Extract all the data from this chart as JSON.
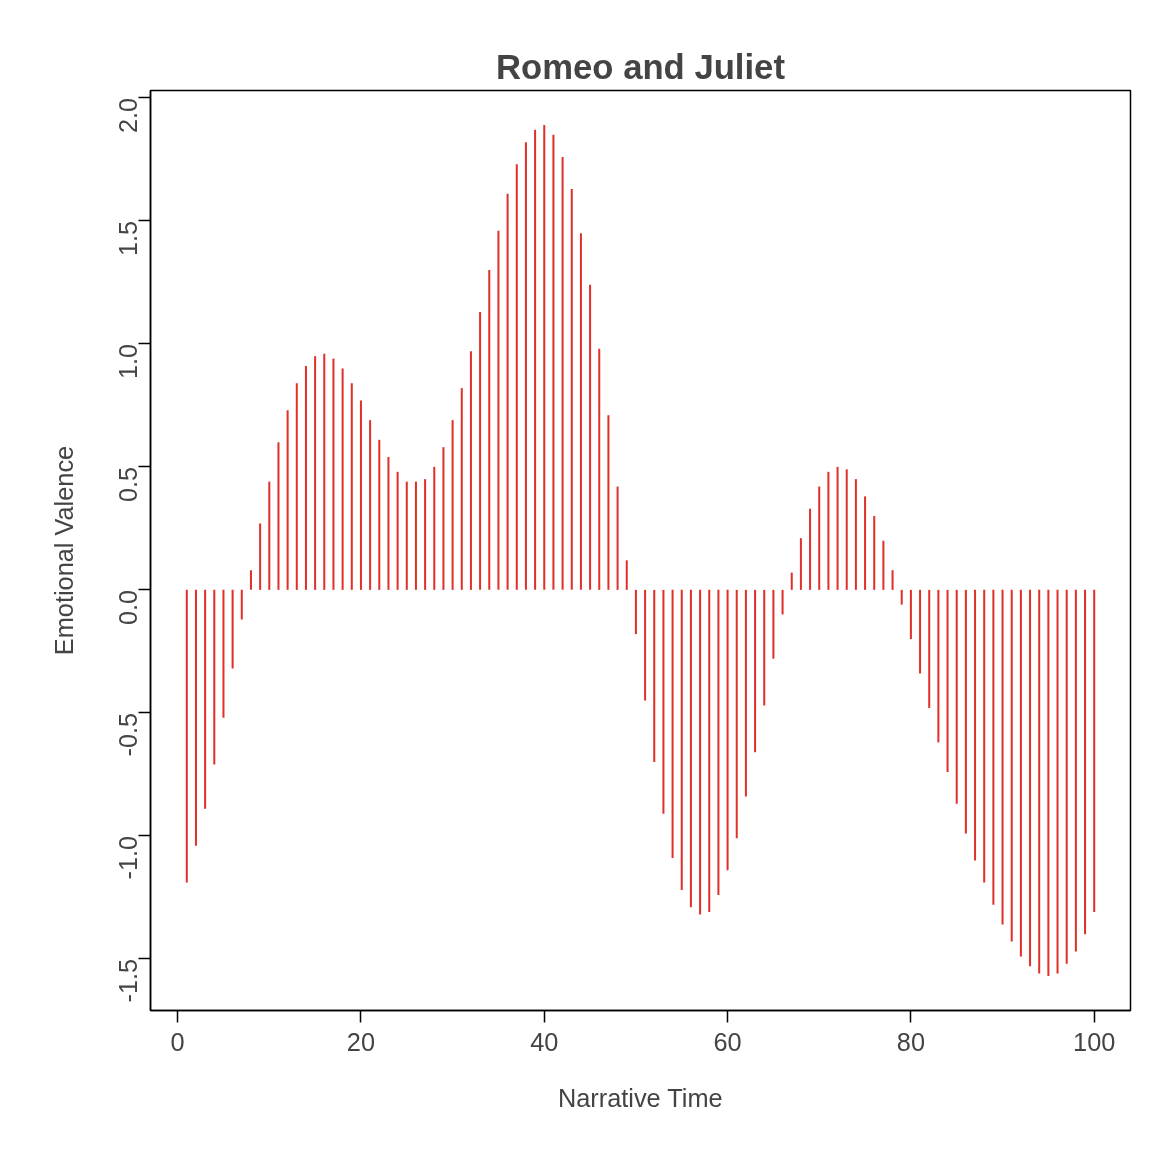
{
  "chart_data": {
    "type": "bar",
    "title": "Romeo and Juliet",
    "xlabel": "Narrative Time",
    "ylabel": "Emotional Valence",
    "color": "#e0302a",
    "x": [
      1,
      2,
      3,
      4,
      5,
      6,
      7,
      8,
      9,
      10,
      11,
      12,
      13,
      14,
      15,
      16,
      17,
      18,
      19,
      20,
      21,
      22,
      23,
      24,
      25,
      26,
      27,
      28,
      29,
      30,
      31,
      32,
      33,
      34,
      35,
      36,
      37,
      38,
      39,
      40,
      41,
      42,
      43,
      44,
      45,
      46,
      47,
      48,
      49,
      50,
      51,
      52,
      53,
      54,
      55,
      56,
      57,
      58,
      59,
      60,
      61,
      62,
      63,
      64,
      65,
      66,
      67,
      68,
      69,
      70,
      71,
      72,
      73,
      74,
      75,
      76,
      77,
      78,
      79,
      80,
      81,
      82,
      83,
      84,
      85,
      86,
      87,
      88,
      89,
      90,
      91,
      92,
      93,
      94,
      95,
      96,
      97,
      98,
      99,
      100
    ],
    "values": [
      -1.19,
      -1.04,
      -0.89,
      -0.71,
      -0.52,
      -0.32,
      -0.12,
      0.08,
      0.27,
      0.44,
      0.6,
      0.73,
      0.84,
      0.91,
      0.95,
      0.96,
      0.94,
      0.9,
      0.84,
      0.77,
      0.69,
      0.61,
      0.54,
      0.48,
      0.44,
      0.44,
      0.45,
      0.5,
      0.58,
      0.69,
      0.82,
      0.97,
      1.13,
      1.3,
      1.46,
      1.61,
      1.73,
      1.82,
      1.87,
      1.89,
      1.85,
      1.76,
      1.63,
      1.45,
      1.24,
      0.98,
      0.71,
      0.42,
      0.12,
      -0.18,
      -0.45,
      -0.7,
      -0.91,
      -1.09,
      -1.22,
      -1.29,
      -1.32,
      -1.31,
      -1.24,
      -1.14,
      -1.01,
      -0.84,
      -0.66,
      -0.47,
      -0.28,
      -0.1,
      0.07,
      0.21,
      0.33,
      0.42,
      0.48,
      0.5,
      0.49,
      0.45,
      0.38,
      0.3,
      0.2,
      0.08,
      -0.06,
      -0.2,
      -0.34,
      -0.48,
      -0.62,
      -0.74,
      -0.87,
      -0.99,
      -1.1,
      -1.19,
      -1.28,
      -1.36,
      -1.43,
      -1.49,
      -1.53,
      -1.56,
      -1.57,
      -1.56,
      -1.52,
      -1.47,
      -1.4,
      -1.31
    ],
    "xlim": [
      -2.96,
      103.96
    ],
    "ylim": [
      -1.71,
      2.03
    ],
    "xticks": [
      0,
      20,
      40,
      60,
      80,
      100
    ],
    "yticks": [
      {
        "value": -1.5,
        "label": "-1.5"
      },
      {
        "value": -1.0,
        "label": "-1.0"
      },
      {
        "value": -0.5,
        "label": "-0.5"
      },
      {
        "value": 0.0,
        "label": "0.0"
      },
      {
        "value": 0.5,
        "label": "0.5"
      },
      {
        "value": 1.0,
        "label": "1.0"
      },
      {
        "value": 1.5,
        "label": "1.5"
      },
      {
        "value": 2.0,
        "label": "2.0"
      }
    ]
  }
}
